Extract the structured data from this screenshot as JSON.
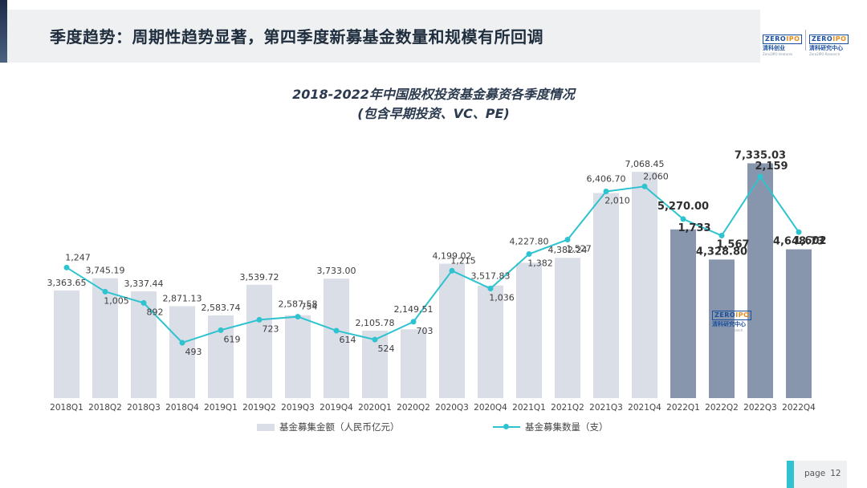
{
  "slide": {
    "title": "季度趋势：周期性趋势显著，第四季度新募基金数量和规模有所回调",
    "page_label": "page",
    "page_number": "12"
  },
  "logos": [
    {
      "mark_a": "ZERO",
      "mark_b": "IPO",
      "cn": "清科创业",
      "en": "Zero2IPO Ventures"
    },
    {
      "mark_a": "ZERO",
      "mark_b": "IPO",
      "cn": "清科研究中心",
      "en": "Zero2IPO Research"
    }
  ],
  "watermark": {
    "mark_a": "ZERO",
    "mark_b": "IPO",
    "cn": "清科研究中心",
    "en": "Zero2IPO Research"
  },
  "colors": {
    "bar_light": "#dadee7",
    "bar_dark": "#8896ad",
    "line": "#2ec3cf",
    "accent": "#2ec3cf",
    "title_text": "#1f2d3d"
  },
  "chart_data": {
    "type": "bar",
    "title": "2018-2022年中国股权投资基金募资各季度情况",
    "subtitle": "(包含早期投资、VC、PE)",
    "categories": [
      "2018Q1",
      "2018Q2",
      "2018Q3",
      "2018Q4",
      "2019Q1",
      "2019Q2",
      "2019Q3",
      "2019Q4",
      "2020Q1",
      "2020Q2",
      "2020Q3",
      "2020Q4",
      "2021Q1",
      "2021Q2",
      "2021Q3",
      "2021Q4",
      "2022Q1",
      "2022Q2",
      "2022Q3",
      "2022Q4"
    ],
    "series": [
      {
        "name": "基金募集金额（人民币亿元）",
        "kind": "bar",
        "values": [
          3363.65,
          3745.19,
          3337.44,
          2871.13,
          2583.74,
          3539.72,
          2587.58,
          3733.0,
          2105.78,
          2149.51,
          4199.02,
          3517.83,
          4227.8,
          4382.24,
          6406.7,
          7068.45,
          5270.0,
          4328.8,
          7335.03,
          4648.73
        ],
        "labels": [
          "3,363.65",
          "3,745.19",
          "3,337.44",
          "2,871.13",
          "2,583.74",
          "3,539.72",
          "2,587.58",
          "3,733.00",
          "2,105.78",
          "2,149.51",
          "4,199.02",
          "3,517.83",
          "4,227.80",
          "4,382.24",
          "6,406.70",
          "7,068.45",
          "5,270.00",
          "4,328.80",
          "7,335.03",
          "4,648.73"
        ],
        "highlight_from_index": 16
      },
      {
        "name": "基金募集数量（支）",
        "kind": "line",
        "values": [
          1247,
          1005,
          892,
          493,
          619,
          723,
          754,
          614,
          524,
          703,
          1215,
          1036,
          1382,
          1527,
          2010,
          2060,
          1733,
          1567,
          2159,
          1602
        ],
        "labels": [
          "1,247",
          "1,005",
          "892",
          "493",
          "619",
          "723",
          "754",
          "614",
          "524",
          "703",
          "1,215",
          "1,036",
          "1,382",
          "1,527",
          "2,010",
          "2,060",
          "1,733",
          "1,567",
          "2,159",
          "1,602"
        ]
      }
    ],
    "ylim_bar": [
      0,
      8000
    ],
    "ylim_line": [
      0,
      2600
    ],
    "legend": "bottom",
    "grid": false
  }
}
